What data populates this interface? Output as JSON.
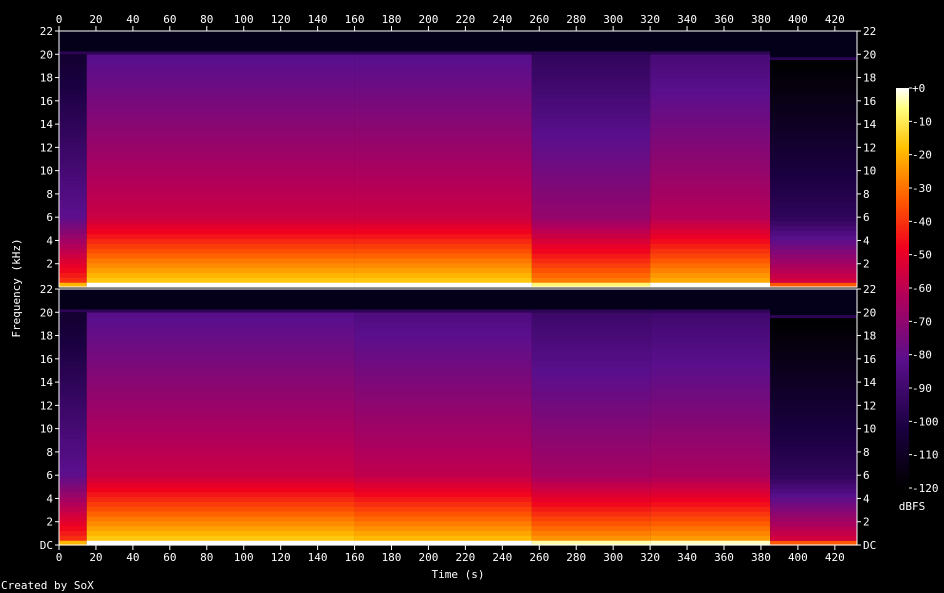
{
  "chart_data": {
    "type": "heatmap",
    "xlabel": "Time (s)",
    "ylabel": "Frequency (kHz)",
    "x_ticks": [
      0,
      20,
      40,
      60,
      80,
      100,
      120,
      140,
      160,
      180,
      200,
      220,
      240,
      260,
      280,
      300,
      320,
      340,
      360,
      380,
      400,
      420
    ],
    "xlim": [
      0,
      432
    ],
    "channels": [
      {
        "y_ticks": [
          "22",
          "20",
          "18",
          "16",
          "14",
          "12",
          "10",
          "8",
          "6",
          "4",
          "2"
        ],
        "y_values": [
          22,
          20,
          18,
          16,
          14,
          12,
          10,
          8,
          6,
          4,
          2
        ],
        "ylim": [
          0,
          22
        ],
        "segments": [
          {
            "start": 0,
            "end": 15,
            "intensity": 0.42,
            "cutoff_khz": 20
          },
          {
            "start": 15,
            "end": 160,
            "intensity": 0.62,
            "cutoff_khz": 20
          },
          {
            "start": 160,
            "end": 256,
            "intensity": 0.62,
            "cutoff_khz": 20
          },
          {
            "start": 256,
            "end": 320,
            "intensity": 0.52,
            "cutoff_khz": 20
          },
          {
            "start": 320,
            "end": 385,
            "intensity": 0.58,
            "cutoff_khz": 20
          },
          {
            "start": 385,
            "end": 432,
            "intensity": 0.3,
            "cutoff_khz": 19.5
          }
        ]
      },
      {
        "y_ticks": [
          "22",
          "20",
          "18",
          "16",
          "14",
          "12",
          "10",
          "8",
          "6",
          "4",
          "2",
          "DC"
        ],
        "y_values": [
          22,
          20,
          18,
          16,
          14,
          12,
          10,
          8,
          6,
          4,
          2,
          0
        ],
        "ylim": [
          0,
          22
        ],
        "segments": [
          {
            "start": 0,
            "end": 15,
            "intensity": 0.42,
            "cutoff_khz": 20
          },
          {
            "start": 15,
            "end": 160,
            "intensity": 0.62,
            "cutoff_khz": 20
          },
          {
            "start": 160,
            "end": 256,
            "intensity": 0.6,
            "cutoff_khz": 20
          },
          {
            "start": 256,
            "end": 320,
            "intensity": 0.55,
            "cutoff_khz": 20
          },
          {
            "start": 320,
            "end": 385,
            "intensity": 0.56,
            "cutoff_khz": 20
          },
          {
            "start": 385,
            "end": 432,
            "intensity": 0.3,
            "cutoff_khz": 19.5
          }
        ]
      }
    ],
    "colorbar": {
      "label": "dBFS",
      "ticks": [
        "+0",
        "-10",
        "-20",
        "-30",
        "-40",
        "-50",
        "-60",
        "-70",
        "-80",
        "-90",
        "-100",
        "-110",
        "-120"
      ],
      "values": [
        0,
        -10,
        -20,
        -30,
        -40,
        -50,
        -60,
        -70,
        -80,
        -90,
        -100,
        -110,
        -120
      ],
      "range": [
        -120,
        0
      ]
    },
    "credit": "Created by SoX"
  }
}
